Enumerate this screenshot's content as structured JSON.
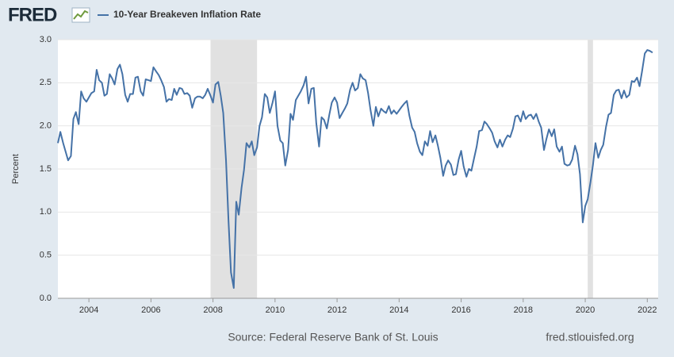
{
  "chart_data": {
    "type": "line",
    "logo": "FRED",
    "source": "Source: Federal Reserve Bank of St. Louis",
    "site": "fred.stlouisfed.org",
    "ylabel": "Percent",
    "grid": true,
    "xlim": [
      2003,
      2022.35
    ],
    "ylim": [
      0,
      3
    ],
    "xticks": [
      2004,
      2006,
      2008,
      2010,
      2012,
      2014,
      2016,
      2018,
      2020,
      2022
    ],
    "yticks": [
      {
        "value": 0,
        "label": "0.0"
      },
      0.5,
      {
        "value": 1,
        "label": "1.0"
      },
      1.5,
      {
        "value": 2,
        "label": "2.0"
      },
      2.5,
      {
        "value": 3,
        "label": "3.0"
      }
    ],
    "recessions": [
      [
        2007.92,
        2009.42
      ],
      [
        2020.08,
        2020.25
      ]
    ],
    "x": [
      2003,
      2003.08,
      2003.17,
      2003.25,
      2003.33,
      2003.42,
      2003.5,
      2003.58,
      2003.67,
      2003.75,
      2003.83,
      2003.92,
      2004,
      2004.08,
      2004.17,
      2004.25,
      2004.33,
      2004.42,
      2004.5,
      2004.58,
      2004.67,
      2004.75,
      2004.83,
      2004.92,
      2005,
      2005.08,
      2005.17,
      2005.25,
      2005.33,
      2005.42,
      2005.5,
      2005.58,
      2005.67,
      2005.75,
      2005.83,
      2005.92,
      2006,
      2006.08,
      2006.17,
      2006.25,
      2006.33,
      2006.42,
      2006.5,
      2006.58,
      2006.67,
      2006.75,
      2006.83,
      2006.92,
      2007,
      2007.08,
      2007.17,
      2007.25,
      2007.33,
      2007.42,
      2007.5,
      2007.58,
      2007.67,
      2007.75,
      2007.83,
      2007.92,
      2008,
      2008.08,
      2008.17,
      2008.25,
      2008.33,
      2008.42,
      2008.5,
      2008.58,
      2008.67,
      2008.75,
      2008.83,
      2008.92,
      2009,
      2009.08,
      2009.17,
      2009.25,
      2009.33,
      2009.42,
      2009.5,
      2009.58,
      2009.67,
      2009.75,
      2009.83,
      2009.92,
      2010,
      2010.08,
      2010.17,
      2010.25,
      2010.33,
      2010.42,
      2010.5,
      2010.58,
      2010.67,
      2010.75,
      2010.83,
      2010.92,
      2011,
      2011.08,
      2011.17,
      2011.25,
      2011.33,
      2011.42,
      2011.5,
      2011.58,
      2011.67,
      2011.75,
      2011.83,
      2011.92,
      2012,
      2012.08,
      2012.17,
      2012.25,
      2012.33,
      2012.42,
      2012.5,
      2012.58,
      2012.67,
      2012.75,
      2012.83,
      2012.92,
      2013,
      2013.08,
      2013.17,
      2013.25,
      2013.33,
      2013.42,
      2013.5,
      2013.58,
      2013.67,
      2013.75,
      2013.83,
      2013.92,
      2014,
      2014.08,
      2014.17,
      2014.25,
      2014.33,
      2014.42,
      2014.5,
      2014.58,
      2014.67,
      2014.75,
      2014.83,
      2014.92,
      2015,
      2015.08,
      2015.17,
      2015.25,
      2015.33,
      2015.42,
      2015.5,
      2015.58,
      2015.67,
      2015.75,
      2015.83,
      2015.92,
      2016,
      2016.08,
      2016.17,
      2016.25,
      2016.33,
      2016.42,
      2016.5,
      2016.58,
      2016.67,
      2016.75,
      2016.83,
      2016.92,
      2017,
      2017.08,
      2017.17,
      2017.25,
      2017.33,
      2017.42,
      2017.5,
      2017.58,
      2017.67,
      2017.75,
      2017.83,
      2017.92,
      2018,
      2018.08,
      2018.17,
      2018.25,
      2018.33,
      2018.42,
      2018.5,
      2018.58,
      2018.67,
      2018.75,
      2018.83,
      2018.92,
      2019,
      2019.08,
      2019.17,
      2019.25,
      2019.33,
      2019.42,
      2019.5,
      2019.58,
      2019.67,
      2019.75,
      2019.83,
      2019.92,
      2020,
      2020.08,
      2020.17,
      2020.25,
      2020.33,
      2020.42,
      2020.5,
      2020.58,
      2020.67,
      2020.75,
      2020.83,
      2020.92,
      2021,
      2021.08,
      2021.17,
      2021.25,
      2021.33,
      2021.42,
      2021.5,
      2021.58,
      2021.67,
      2021.75,
      2021.83,
      2021.92,
      2022,
      2022.08,
      2022.17
    ],
    "series": [
      {
        "name": "10-Year Breakeven Inflation Rate",
        "color": "#4572a7",
        "values": [
          1.8,
          1.93,
          1.8,
          1.7,
          1.6,
          1.65,
          2.08,
          2.16,
          2.02,
          2.4,
          2.32,
          2.28,
          2.33,
          2.38,
          2.4,
          2.65,
          2.53,
          2.5,
          2.35,
          2.37,
          2.6,
          2.55,
          2.48,
          2.66,
          2.71,
          2.6,
          2.36,
          2.28,
          2.37,
          2.37,
          2.56,
          2.57,
          2.4,
          2.35,
          2.54,
          2.53,
          2.52,
          2.68,
          2.63,
          2.59,
          2.53,
          2.45,
          2.28,
          2.31,
          2.3,
          2.43,
          2.36,
          2.44,
          2.43,
          2.37,
          2.38,
          2.35,
          2.21,
          2.32,
          2.34,
          2.34,
          2.32,
          2.36,
          2.43,
          2.35,
          2.27,
          2.48,
          2.51,
          2.35,
          2.15,
          1.6,
          0.9,
          0.3,
          0.12,
          1.12,
          0.97,
          1.28,
          1.49,
          1.8,
          1.75,
          1.82,
          1.66,
          1.75,
          2.0,
          2.1,
          2.37,
          2.33,
          2.15,
          2.27,
          2.4,
          2.0,
          1.83,
          1.8,
          1.54,
          1.72,
          2.14,
          2.07,
          2.3,
          2.35,
          2.4,
          2.47,
          2.57,
          2.26,
          2.43,
          2.44,
          2.03,
          1.76,
          2.1,
          2.07,
          1.97,
          2.13,
          2.27,
          2.33,
          2.27,
          2.09,
          2.15,
          2.2,
          2.26,
          2.42,
          2.5,
          2.41,
          2.44,
          2.6,
          2.55,
          2.53,
          2.38,
          2.18,
          2.0,
          2.22,
          2.11,
          2.2,
          2.17,
          2.15,
          2.23,
          2.14,
          2.18,
          2.14,
          2.18,
          2.22,
          2.26,
          2.29,
          2.12,
          1.98,
          1.93,
          1.8,
          1.7,
          1.66,
          1.82,
          1.77,
          1.94,
          1.81,
          1.89,
          1.77,
          1.63,
          1.42,
          1.54,
          1.6,
          1.55,
          1.43,
          1.44,
          1.61,
          1.71,
          1.53,
          1.41,
          1.5,
          1.48,
          1.63,
          1.76,
          1.94,
          1.95,
          2.05,
          2.02,
          1.97,
          1.92,
          1.82,
          1.75,
          1.84,
          1.76,
          1.84,
          1.89,
          1.87,
          1.97,
          2.11,
          2.12,
          2.05,
          2.17,
          2.08,
          2.12,
          2.13,
          2.08,
          2.14,
          2.05,
          1.98,
          1.72,
          1.85,
          1.96,
          1.88,
          1.96,
          1.76,
          1.7,
          1.76,
          1.56,
          1.54,
          1.55,
          1.61,
          1.77,
          1.67,
          1.44,
          0.88,
          1.07,
          1.15,
          1.35,
          1.55,
          1.8,
          1.63,
          1.72,
          1.78,
          1.99,
          2.13,
          2.15,
          2.36,
          2.41,
          2.42,
          2.32,
          2.41,
          2.33,
          2.36,
          2.52,
          2.51,
          2.56,
          2.46,
          2.63,
          2.84,
          2.88,
          2.87,
          2.85
        ]
      }
    ]
  }
}
